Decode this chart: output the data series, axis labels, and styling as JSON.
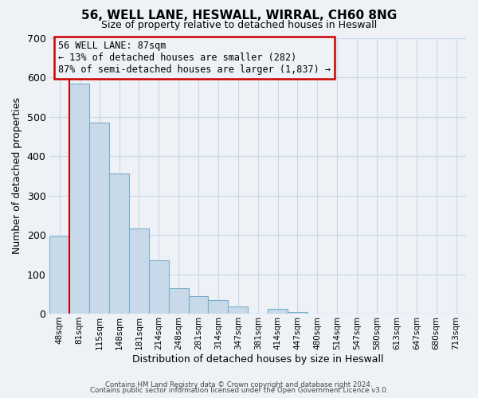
{
  "title": "56, WELL LANE, HESWALL, WIRRAL, CH60 8NG",
  "subtitle": "Size of property relative to detached houses in Heswall",
  "xlabel": "Distribution of detached houses by size in Heswall",
  "ylabel": "Number of detached properties",
  "bar_labels": [
    "48sqm",
    "81sqm",
    "115sqm",
    "148sqm",
    "181sqm",
    "214sqm",
    "248sqm",
    "281sqm",
    "314sqm",
    "347sqm",
    "381sqm",
    "414sqm",
    "447sqm",
    "480sqm",
    "514sqm",
    "547sqm",
    "580sqm",
    "613sqm",
    "647sqm",
    "680sqm",
    "713sqm"
  ],
  "bar_heights": [
    197,
    583,
    485,
    356,
    216,
    135,
    65,
    45,
    35,
    18,
    0,
    12,
    5,
    0,
    0,
    0,
    0,
    0,
    0,
    0,
    0
  ],
  "bar_color": "#c8daea",
  "bar_edge_color": "#7aafc8",
  "ylim": [
    0,
    700
  ],
  "yticks": [
    0,
    100,
    200,
    300,
    400,
    500,
    600,
    700
  ],
  "annotation_title": "56 WELL LANE: 87sqm",
  "annotation_line1": "← 13% of detached houses are smaller (282)",
  "annotation_line2": "87% of semi-detached houses are larger (1,837) →",
  "footer_line1": "Contains HM Land Registry data © Crown copyright and database right 2024.",
  "footer_line2": "Contains public sector information licensed under the Open Government Licence v3.0.",
  "red_line_color": "#cc0000",
  "annotation_box_edge_color": "#cc0000",
  "grid_color": "#c8d8e8",
  "background_color": "#eef2f7",
  "plot_bg_color": "#eef2f7"
}
